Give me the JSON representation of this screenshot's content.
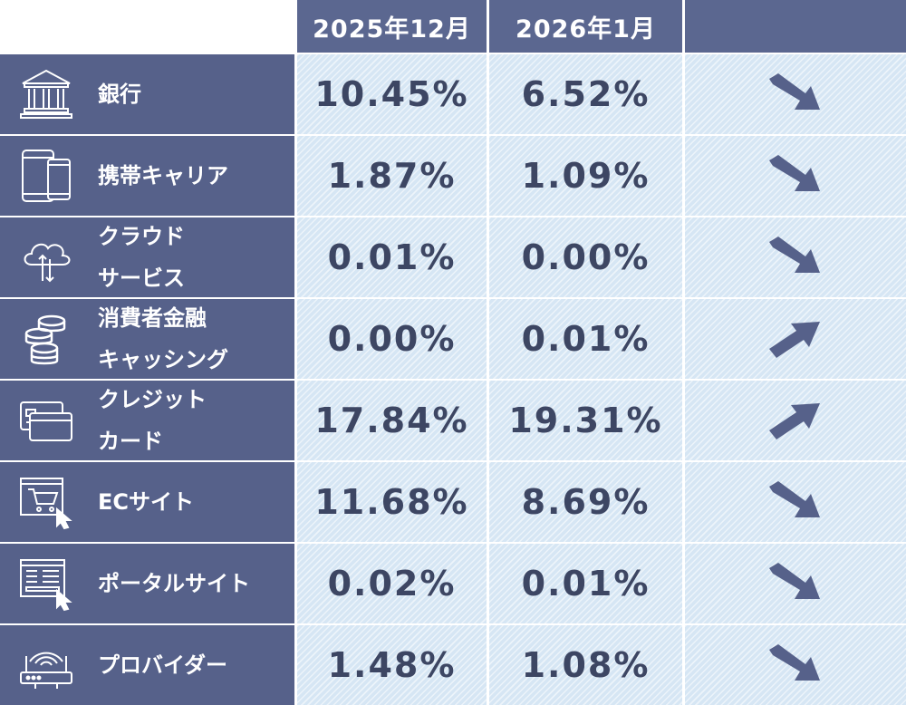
{
  "header": {
    "col1": "2025年12月",
    "col2": "2026年1月",
    "col3": ""
  },
  "rows": [
    {
      "icon": "bank-icon",
      "label_lines": [
        "銀行"
      ],
      "dec": "10.45%",
      "jan": "6.52%",
      "trend": "down"
    },
    {
      "icon": "mobile-devices-icon",
      "label_lines": [
        "携帯キャリア"
      ],
      "dec": "1.87%",
      "jan": "1.09%",
      "trend": "down"
    },
    {
      "icon": "cloud-icon",
      "label_lines": [
        "クラウド",
        "サービス"
      ],
      "dec": "0.01%",
      "jan": "0.00%",
      "trend": "down"
    },
    {
      "icon": "coins-icon",
      "label_lines": [
        "消費者金融",
        "キャッシング"
      ],
      "dec": "0.00%",
      "jan": "0.01%",
      "trend": "up"
    },
    {
      "icon": "credit-card-icon",
      "label_lines": [
        "クレジット",
        "カード"
      ],
      "dec": "17.84%",
      "jan": "19.31%",
      "trend": "up"
    },
    {
      "icon": "shopping-cart-icon",
      "label_lines": [
        "ECサイト"
      ],
      "dec": "11.68%",
      "jan": "8.69%",
      "trend": "down"
    },
    {
      "icon": "portal-site-icon",
      "label_lines": [
        "ポータルサイト"
      ],
      "dec": "0.02%",
      "jan": "0.01%",
      "trend": "down"
    },
    {
      "icon": "router-icon",
      "label_lines": [
        "プロバイダー"
      ],
      "dec": "1.48%",
      "jan": "1.08%",
      "trend": "down"
    }
  ],
  "colors": {
    "category_bg": "#56618a",
    "header_bg": "#5b6790",
    "value_bg": "#d6e6f4",
    "value_text": "#3d4663",
    "arrow": "#56618a"
  }
}
